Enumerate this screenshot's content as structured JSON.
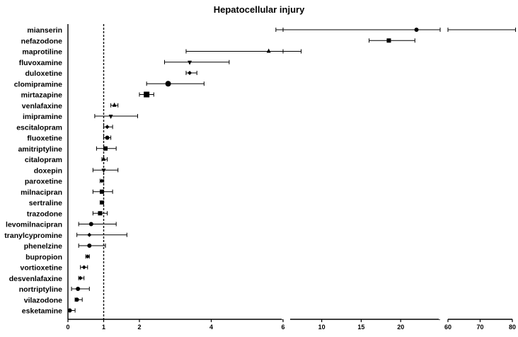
{
  "chart_data": {
    "type": "forest",
    "title": "Hepatocellular injury",
    "xlabel": "",
    "ylabel": "",
    "reference_line": 1,
    "x_axis_segments": [
      {
        "range": [
          0,
          6
        ],
        "ticks": [
          0,
          1,
          2,
          4,
          6
        ]
      },
      {
        "range": [
          6,
          25
        ],
        "ticks": [
          10,
          15,
          20
        ]
      },
      {
        "range": [
          60,
          80
        ],
        "ticks": [
          60,
          70,
          80
        ]
      }
    ],
    "rows": [
      {
        "name": "mianserin",
        "estimate": 22.0,
        "lower": 5.8,
        "upper": 81.0,
        "marker": "circle"
      },
      {
        "name": "nefazodone",
        "estimate": 18.5,
        "lower": 16.0,
        "upper": 21.8,
        "marker": "square"
      },
      {
        "name": "maprotiline",
        "estimate": 5.6,
        "lower": 3.3,
        "upper": 7.4,
        "marker": "triangle-up"
      },
      {
        "name": "fluvoxamine",
        "estimate": 3.4,
        "lower": 2.7,
        "upper": 4.5,
        "marker": "triangle-down"
      },
      {
        "name": "duloxetine",
        "estimate": 3.4,
        "lower": 3.3,
        "upper": 3.6,
        "marker": "diamond"
      },
      {
        "name": "clomipramine",
        "estimate": 2.8,
        "lower": 2.2,
        "upper": 3.8,
        "marker": "circle"
      },
      {
        "name": "mirtazapine",
        "estimate": 2.2,
        "lower": 2.0,
        "upper": 2.4,
        "marker": "square"
      },
      {
        "name": "venlafaxine",
        "estimate": 1.3,
        "lower": 1.2,
        "upper": 1.4,
        "marker": "triangle-up"
      },
      {
        "name": "imipramine",
        "estimate": 1.2,
        "lower": 0.75,
        "upper": 1.95,
        "marker": "triangle-down"
      },
      {
        "name": "escitalopram",
        "estimate": 1.1,
        "lower": 1.0,
        "upper": 1.25,
        "marker": "diamond"
      },
      {
        "name": "fluoxetine",
        "estimate": 1.1,
        "lower": 1.0,
        "upper": 1.2,
        "marker": "circle"
      },
      {
        "name": "amitriptyline",
        "estimate": 1.05,
        "lower": 0.8,
        "upper": 1.35,
        "marker": "square"
      },
      {
        "name": "citalopram",
        "estimate": 1.0,
        "lower": 0.95,
        "upper": 1.1,
        "marker": "triangle-up"
      },
      {
        "name": "doxepin",
        "estimate": 1.0,
        "lower": 0.7,
        "upper": 1.4,
        "marker": "triangle-down"
      },
      {
        "name": "paroxetine",
        "estimate": 0.95,
        "lower": 0.9,
        "upper": 1.0,
        "marker": "diamond"
      },
      {
        "name": "milnacipran",
        "estimate": 0.95,
        "lower": 0.7,
        "upper": 1.25,
        "marker": "square"
      },
      {
        "name": "sertraline",
        "estimate": 0.95,
        "lower": 0.9,
        "upper": 1.0,
        "marker": "circle"
      },
      {
        "name": "trazodone",
        "estimate": 0.9,
        "lower": 0.7,
        "upper": 1.1,
        "marker": "square"
      },
      {
        "name": "levomilnacipran",
        "estimate": 0.65,
        "lower": 0.3,
        "upper": 1.35,
        "marker": "circle"
      },
      {
        "name": "tranylcypromine",
        "estimate": 0.6,
        "lower": 0.25,
        "upper": 1.65,
        "marker": "diamond"
      },
      {
        "name": "phenelzine",
        "estimate": 0.6,
        "lower": 0.3,
        "upper": 1.05,
        "marker": "circle"
      },
      {
        "name": "bupropion",
        "estimate": 0.55,
        "lower": 0.5,
        "upper": 0.6,
        "marker": "diamond"
      },
      {
        "name": "vortioxetine",
        "estimate": 0.45,
        "lower": 0.35,
        "upper": 0.55,
        "marker": "diamond"
      },
      {
        "name": "desvenlafaxine",
        "estimate": 0.35,
        "lower": 0.3,
        "upper": 0.45,
        "marker": "diamond"
      },
      {
        "name": "nortriptyline",
        "estimate": 0.28,
        "lower": 0.1,
        "upper": 0.6,
        "marker": "circle"
      },
      {
        "name": "vilazodone",
        "estimate": 0.25,
        "lower": 0.2,
        "upper": 0.4,
        "marker": "circle"
      },
      {
        "name": "esketamine",
        "estimate": 0.05,
        "lower": 0.0,
        "upper": 0.2,
        "marker": "circle"
      }
    ]
  }
}
